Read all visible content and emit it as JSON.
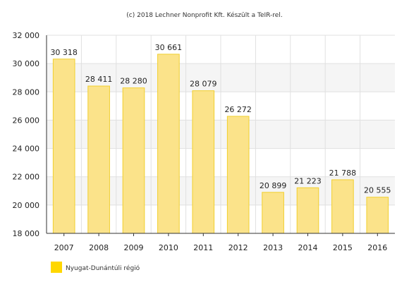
{
  "credit": "(c) 2018 Lechner Nonprofit Kft. Készült a TeIR-rel.",
  "colors": {
    "bar_fill": "#fbe38a",
    "bar_stroke": "#f1cf2e",
    "band": "#f5f5f5",
    "grid": "#e0e0e0",
    "axis": "#333333",
    "legend_swatch": "#ffd700"
  },
  "chart_data": {
    "type": "bar",
    "title": "",
    "xlabel": "",
    "ylabel": "",
    "categories": [
      "2007",
      "2008",
      "2009",
      "2010",
      "2011",
      "2012",
      "2013",
      "2014",
      "2015",
      "2016"
    ],
    "series": [
      {
        "name": "Nyugat-Dunántúli régió",
        "values": [
          30318,
          28411,
          28280,
          30661,
          28079,
          26272,
          20899,
          21223,
          21788,
          20555
        ],
        "labels": [
          "30 318",
          "28 411",
          "28 280",
          "30 661",
          "28 079",
          "26 272",
          "20 899",
          "21 223",
          "21 788",
          "20 555"
        ]
      }
    ],
    "ylim": [
      18000,
      32000
    ],
    "yticks": [
      18000,
      20000,
      22000,
      24000,
      26000,
      28000,
      30000,
      32000
    ],
    "ytick_labels": [
      "18 000",
      "20 000",
      "22 000",
      "24 000",
      "26 000",
      "28 000",
      "30 000",
      "32 000"
    ],
    "grid": true,
    "legend_position": "bottom-left"
  }
}
